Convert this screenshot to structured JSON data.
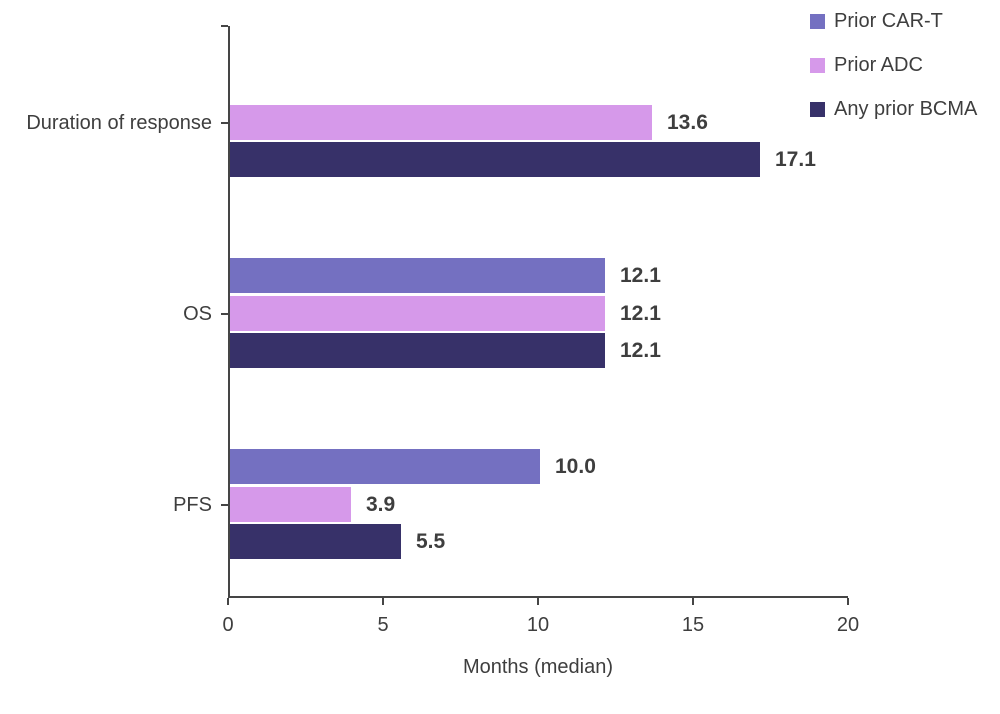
{
  "chart_data": {
    "type": "bar",
    "orientation": "horizontal",
    "xlabel": "Months (median)",
    "categories": [
      "Duration of response",
      "OS",
      "PFS"
    ],
    "series": [
      {
        "name": "Prior CAR-T",
        "color": "#7470C1",
        "values": [
          null,
          12.1,
          10.0
        ]
      },
      {
        "name": "Prior ADC",
        "color": "#D699EA",
        "values": [
          13.6,
          12.1,
          3.9
        ]
      },
      {
        "name": "Any prior BCMA",
        "color": "#373169",
        "values": [
          17.1,
          12.1,
          5.5
        ]
      }
    ],
    "value_labels": [
      "13.6",
      "17.1",
      "12.1",
      "12.1",
      "12.1",
      "10.0",
      "3.9",
      "5.5"
    ],
    "xlim": [
      0,
      20
    ],
    "xticks": [
      0,
      5,
      10,
      15,
      20
    ],
    "xtick_labels": [
      "0",
      "5",
      "10",
      "15",
      "20"
    ],
    "grid": false,
    "legend_position": "top-right",
    "value_label_format": "one-decimal"
  },
  "colors": {
    "text": "#3e3e3e",
    "axis": "#454545",
    "background": "#ffffff"
  }
}
